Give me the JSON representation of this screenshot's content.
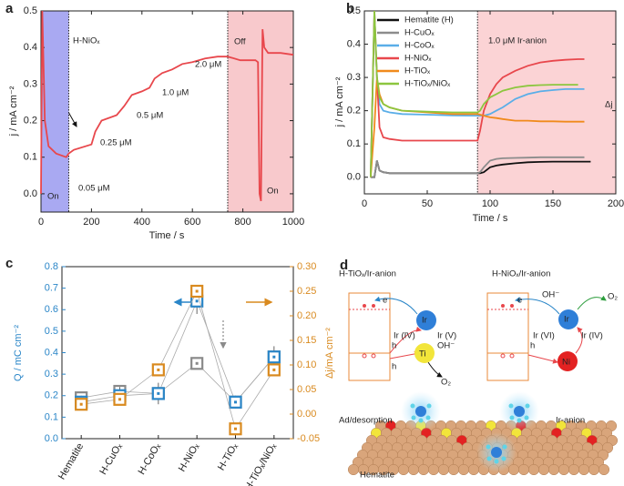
{
  "chart_data": [
    {
      "type": "line",
      "label": "a",
      "xlabel": "Time / s",
      "ylabel": "j / mA cm⁻²",
      "xlim": [
        0,
        1000
      ],
      "ylim": [
        -0.05,
        0.5
      ],
      "xticks": [
        0,
        200,
        400,
        600,
        800,
        1000
      ],
      "yticks": [
        {
          "value": 0,
          "label": "0.0"
        },
        0.1,
        0.2,
        0.3,
        0.4,
        0.5
      ],
      "spans": [
        {
          "x": [
            0,
            110
          ],
          "color": "#a9a9f2"
        },
        {
          "x": [
            740,
            1000
          ],
          "color": "#f8c9cc"
        }
      ],
      "vlines": [
        110,
        740
      ],
      "x": [
        0,
        5,
        15,
        30,
        60,
        100,
        110,
        130,
        200,
        215,
        240,
        300,
        330,
        360,
        400,
        430,
        450,
        480,
        520,
        560,
        600,
        650,
        700,
        740,
        790,
        850,
        860,
        866,
        872,
        878,
        885,
        900,
        950,
        1000
      ],
      "series": [
        {
          "color": "#e8474c",
          "values": [
            0.0,
            0.5,
            0.2,
            0.13,
            0.11,
            0.1,
            0.11,
            0.12,
            0.135,
            0.17,
            0.2,
            0.215,
            0.24,
            0.27,
            0.28,
            0.29,
            0.315,
            0.33,
            0.34,
            0.355,
            0.36,
            0.37,
            0.375,
            0.375,
            0.365,
            0.365,
            0.36,
            0.0,
            -0.02,
            0.45,
            0.4,
            0.385,
            0.385,
            0.38
          ]
        }
      ],
      "annotations": [
        "H-NiOₓ",
        "0.05 μM",
        "0.25 μM",
        "0.5 μM",
        "1.0 μM",
        "2.0 μM",
        "Off",
        "On",
        "On"
      ]
    },
    {
      "type": "line",
      "label": "b",
      "xlabel": "Time / s",
      "ylabel": "j / mA cm⁻²",
      "xlim": [
        0,
        200
      ],
      "ylim": [
        -0.05,
        0.5
      ],
      "xticks": [
        0,
        50,
        100,
        150,
        200
      ],
      "yticks": [
        {
          "value": 0,
          "label": "0.0"
        },
        0.1,
        0.2,
        0.3,
        0.4,
        0.5
      ],
      "spans": [
        {
          "x": [
            90,
            200
          ],
          "color": "#fbd3d5"
        }
      ],
      "vlines": [
        90
      ],
      "legend": "upper left",
      "x": [
        5,
        8,
        10,
        12,
        15,
        20,
        30,
        50,
        70,
        89,
        90,
        92,
        95,
        100,
        105,
        110,
        120,
        130,
        140,
        150,
        160,
        170,
        175,
        180
      ],
      "series": [
        {
          "name": "Hematite (H)",
          "color": "#111111",
          "values": [
            0,
            0,
            0.05,
            0.02,
            0.015,
            0.012,
            0.012,
            0.012,
            0.012,
            0.012,
            0.012,
            0.012,
            0.015,
            0.03,
            0.035,
            0.038,
            0.042,
            0.045,
            0.046,
            0.047,
            0.047,
            0.047,
            0.047,
            0.047
          ]
        },
        {
          "name": "H-CuOₓ",
          "color": "#8c8c8c",
          "values": [
            0,
            0,
            0.05,
            0.02,
            0.015,
            0.012,
            0.012,
            0.012,
            0.012,
            0.012,
            0.012,
            0.015,
            0.03,
            0.05,
            0.055,
            0.057,
            0.058,
            0.059,
            0.06,
            0.06,
            0.06,
            0.06,
            0.06,
            null
          ]
        },
        {
          "name": "H-CoOₓ",
          "color": "#5aaee8",
          "values": [
            0,
            0.5,
            0.3,
            0.22,
            0.2,
            0.195,
            0.19,
            0.188,
            0.186,
            0.185,
            0.185,
            0.185,
            0.185,
            0.19,
            0.2,
            0.21,
            0.235,
            0.25,
            0.258,
            0.262,
            0.265,
            0.265,
            0.265,
            null
          ]
        },
        {
          "name": "H-NiOₓ",
          "color": "#e8474c",
          "values": [
            0,
            0.5,
            0.3,
            0.15,
            0.12,
            0.115,
            0.11,
            0.11,
            0.11,
            0.11,
            0.11,
            0.14,
            0.2,
            0.25,
            0.28,
            0.3,
            0.32,
            0.335,
            0.345,
            0.35,
            0.353,
            0.355,
            0.355,
            null
          ]
        },
        {
          "name": "H-TiOₓ",
          "color": "#f08a1c",
          "values": [
            0,
            0.15,
            0.3,
            0.25,
            0.22,
            0.21,
            0.2,
            0.195,
            0.19,
            0.19,
            0.19,
            0.188,
            0.185,
            0.18,
            0.178,
            0.175,
            0.17,
            0.17,
            0.168,
            0.168,
            0.167,
            0.167,
            0.167,
            null
          ]
        },
        {
          "name": "H-TiOₓ/NiOₓ",
          "color": "#8cc63f",
          "values": [
            0,
            0.5,
            0.3,
            0.24,
            0.22,
            0.21,
            0.2,
            0.197,
            0.195,
            0.195,
            0.195,
            0.2,
            0.22,
            0.24,
            0.25,
            0.26,
            0.27,
            0.275,
            0.277,
            0.278,
            0.278,
            0.278,
            null,
            null
          ]
        }
      ],
      "annotations": [
        "1.0 μM Ir-anion",
        "Δj"
      ]
    },
    {
      "type": "scatter",
      "label": "c",
      "ylabel": "Q / mC cm⁻²",
      "y2label": "Δj/mA cm⁻²",
      "categories": [
        "Hematite",
        "H-CuOₓ",
        "H-CoOₓ",
        "H-NiOₓ",
        "H-TiOₓ",
        "H-TiOₓ/NiOₓ"
      ],
      "ylim": [
        0,
        0.8
      ],
      "yticks": [
        {
          "value": 0,
          "label": "0.0"
        },
        0.1,
        0.2,
        0.3,
        0.4,
        0.5,
        0.6,
        0.7,
        0.8
      ],
      "y2lim": [
        -0.05,
        0.3
      ],
      "y2ticks": [
        -0.05,
        {
          "value": 0,
          "label": "0.00"
        },
        0.05,
        {
          "value": 0.1,
          "label": "0.10"
        },
        0.15,
        {
          "value": 0.2,
          "label": "0.20"
        },
        0.25,
        {
          "value": 0.3,
          "label": "0.30"
        }
      ],
      "series": [
        {
          "color": "#8a8a8a",
          "values": [
            0.19,
            0.22,
            0.21,
            0.35,
            0.17,
            0.38
          ]
        },
        {
          "color": "#2a86c8",
          "values": [
            0.17,
            0.2,
            0.21,
            0.64,
            0.17,
            0.38
          ],
          "errors": [
            0.03,
            0.04,
            0.05,
            0.06,
            0.03,
            0.05
          ]
        },
        {
          "color": "#d98a1f",
          "axis": "y2",
          "values": [
            0.02,
            0.03,
            0.09,
            0.25,
            -0.03,
            0.09
          ]
        }
      ]
    }
  ],
  "diagram": {
    "label": "d",
    "left": {
      "title": "H-TiOₓ/Ir-anion",
      "e": "e",
      "ir": "Ir",
      "ir4": "Ir (IV)",
      "ir5": "Ir (V)",
      "h1": "h",
      "h2": "h",
      "oh": "OH⁻",
      "ti": "Ti",
      "o2": "O₂"
    },
    "right": {
      "title": "H-NiOₓ/Ir-anion",
      "e": "e",
      "oh": "OH⁻",
      "o2": "O₂",
      "ir": "Ir",
      "ir6": "Ir (VI)",
      "ir4": "Ir (IV)",
      "h": "h",
      "ni": "Ni"
    },
    "bottom": {
      "ads": "Ad/desorption",
      "anion": "Ir-anion",
      "hematite": "Hematite"
    }
  }
}
